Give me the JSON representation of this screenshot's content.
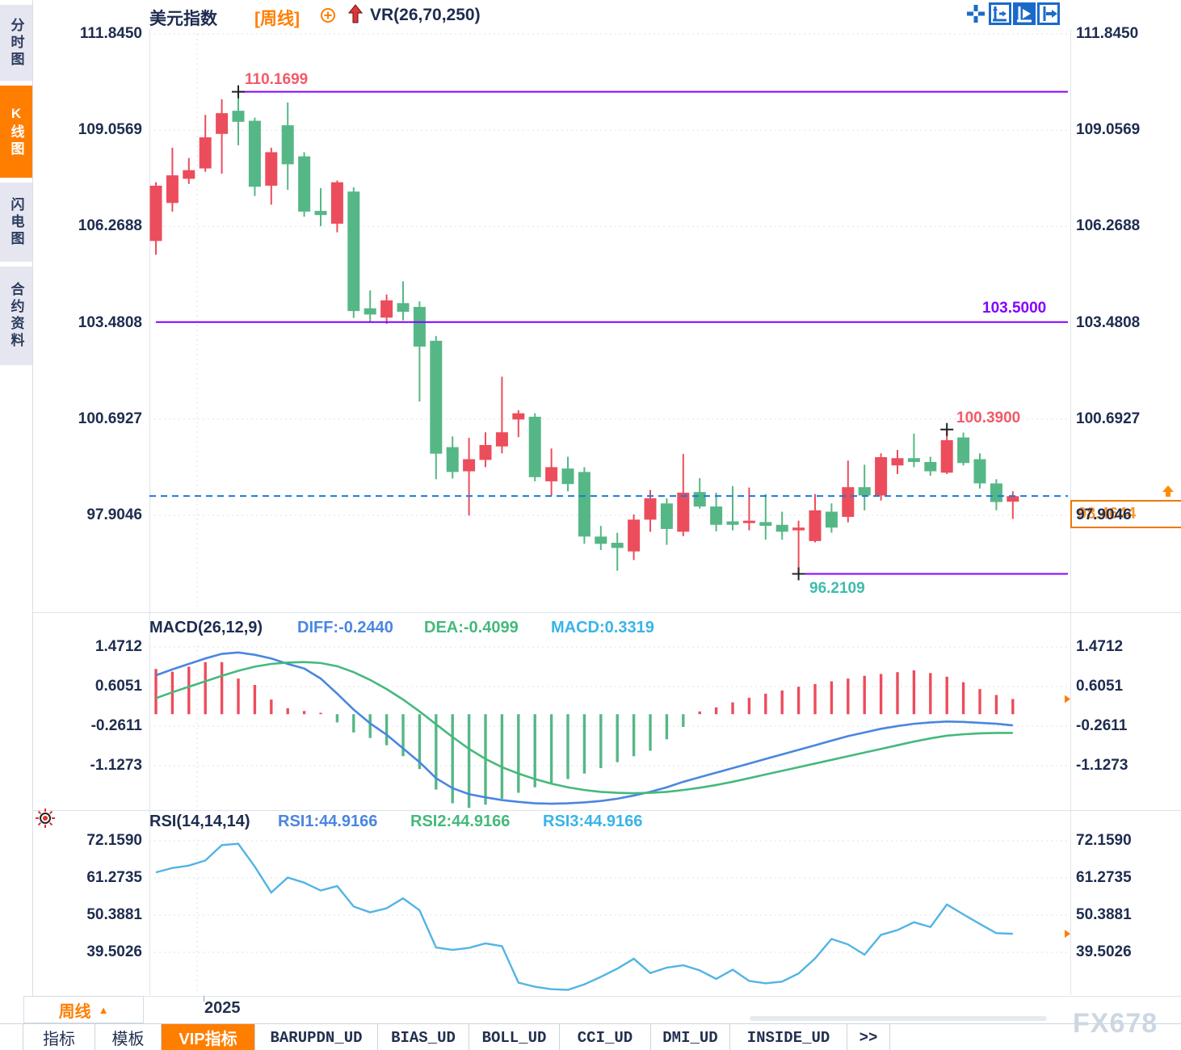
{
  "header": {
    "title": "美元指数",
    "period_tag": "[周线]",
    "indicator": "VR(26,70,250)"
  },
  "sidebar": {
    "items": [
      {
        "label": "分时图",
        "active": false
      },
      {
        "label": "K线图",
        "active": true
      },
      {
        "label": "闪电图",
        "active": false
      },
      {
        "label": "合约资料",
        "active": false
      }
    ]
  },
  "toolbar": {
    "icons": [
      "pan-tool",
      "axis-range",
      "axis-scale",
      "move-right"
    ]
  },
  "chart_data": [
    {
      "type": "candlestick",
      "title": "美元指数 周线",
      "ylim": [
        96.0,
        111.845
      ],
      "grid": true,
      "yticks": {
        "labels": [
          "111.8450",
          "109.0569",
          "106.2688",
          "103.4808",
          "100.6927",
          "97.9046"
        ],
        "values": [
          111.845,
          109.0569,
          106.2688,
          103.4808,
          100.6927,
          97.9046
        ]
      },
      "candles_ohlc": [
        [
          105.85,
          107.55,
          105.45,
          107.45
        ],
        [
          106.95,
          108.55,
          106.7,
          107.75
        ],
        [
          107.65,
          108.25,
          107.5,
          107.9
        ],
        [
          107.95,
          109.5,
          107.85,
          108.85
        ],
        [
          108.95,
          109.95,
          107.8,
          109.55
        ],
        [
          109.62,
          110.17,
          108.62,
          109.3
        ],
        [
          109.33,
          109.42,
          107.15,
          107.42
        ],
        [
          107.45,
          108.55,
          106.9,
          108.42
        ],
        [
          109.2,
          109.86,
          107.33,
          108.07
        ],
        [
          108.3,
          108.42,
          106.55,
          106.7
        ],
        [
          106.72,
          107.38,
          106.28,
          106.6
        ],
        [
          106.35,
          107.6,
          106.1,
          107.55
        ],
        [
          107.28,
          107.4,
          103.62,
          103.82
        ],
        [
          103.9,
          104.42,
          103.5,
          103.72
        ],
        [
          103.63,
          104.3,
          103.45,
          104.13
        ],
        [
          104.05,
          104.68,
          103.55,
          103.8
        ],
        [
          103.94,
          104.1,
          101.2,
          102.79
        ],
        [
          102.96,
          103.1,
          98.95,
          99.69
        ],
        [
          99.88,
          100.19,
          98.97,
          99.16
        ],
        [
          99.18,
          100.15,
          97.9,
          99.53
        ],
        [
          99.51,
          100.31,
          99.3,
          99.94
        ],
        [
          99.9,
          101.92,
          99.7,
          100.31
        ],
        [
          100.68,
          100.95,
          100.17,
          100.86
        ],
        [
          100.76,
          100.86,
          98.89,
          99.01
        ],
        [
          98.89,
          99.84,
          98.48,
          99.3
        ],
        [
          99.26,
          99.6,
          98.6,
          98.81
        ],
        [
          99.16,
          99.3,
          97.08,
          97.29
        ],
        [
          97.29,
          97.6,
          96.9,
          97.08
        ],
        [
          97.11,
          97.4,
          96.3,
          96.96
        ],
        [
          96.86,
          97.93,
          96.61,
          97.78
        ],
        [
          97.78,
          98.64,
          97.43,
          98.4
        ],
        [
          98.25,
          98.4,
          97.05,
          97.51
        ],
        [
          97.43,
          99.68,
          97.3,
          98.56
        ],
        [
          98.58,
          98.98,
          98.1,
          98.16
        ],
        [
          98.16,
          98.56,
          97.44,
          97.63
        ],
        [
          97.73,
          98.75,
          97.47,
          97.63
        ],
        [
          97.68,
          98.71,
          97.47,
          97.75
        ],
        [
          97.71,
          98.52,
          97.2,
          97.6
        ],
        [
          97.63,
          98.01,
          97.2,
          97.43
        ],
        [
          97.47,
          97.75,
          96.21,
          97.55
        ],
        [
          97.16,
          98.52,
          97.12,
          98.05
        ],
        [
          98.01,
          98.25,
          97.4,
          97.55
        ],
        [
          97.86,
          99.49,
          97.7,
          98.72
        ],
        [
          98.72,
          99.37,
          98.05,
          98.48
        ],
        [
          98.48,
          99.7,
          98.33,
          99.59
        ],
        [
          99.35,
          99.8,
          99.1,
          99.56
        ],
        [
          99.56,
          100.27,
          99.3,
          99.45
        ],
        [
          99.45,
          99.6,
          99.05,
          99.18
        ],
        [
          99.14,
          100.39,
          99.1,
          100.08
        ],
        [
          100.16,
          100.3,
          99.35,
          99.42
        ],
        [
          99.53,
          99.7,
          98.68,
          98.83
        ],
        [
          98.83,
          98.95,
          98.05,
          98.29
        ],
        [
          98.3,
          98.6,
          97.8,
          98.46
        ]
      ],
      "hlines": [
        {
          "value": 110.1699,
          "label": "110.1699",
          "start_index": 5,
          "label_side": "left-above",
          "color_key": "red_label"
        },
        {
          "value": 103.5,
          "label": "103.5000",
          "start_index": 0,
          "label_side": "right-above",
          "color_key": "purple"
        },
        {
          "value": 96.2109,
          "label": "96.2109",
          "start_index": 39,
          "label_side": "left-below",
          "color_key": "teal_label"
        }
      ],
      "markers": [
        {
          "index": 5,
          "value": 110.1699,
          "glyph": "+"
        },
        {
          "index": 39,
          "value": 96.2109,
          "glyph": "+"
        },
        {
          "index": 48,
          "value": 100.39,
          "glyph": "+"
        }
      ],
      "high_label": {
        "text": "100.3900",
        "value": 100.39
      },
      "current_price": {
        "value": 98.4644,
        "label": "98.4644"
      }
    },
    {
      "type": "bar",
      "title": "MACD",
      "params_label": "MACD(26,12,9)",
      "series_labels": {
        "diff": "DIFF:-0.2440",
        "dea": "DEA:-0.4099",
        "macd": "MACD:0.3319"
      },
      "yticks": {
        "labels": [
          "1.4712",
          "0.6051",
          "-0.2611",
          "-1.1273"
        ],
        "values": [
          1.4712,
          0.6051,
          -0.2611,
          -1.1273
        ]
      },
      "hist": [
        0.99,
        0.93,
        1.04,
        1.14,
        1.14,
        0.78,
        0.64,
        0.32,
        0.13,
        0.07,
        0.03,
        -0.18,
        -0.4,
        -0.52,
        -0.68,
        -0.92,
        -1.2,
        -1.65,
        -1.95,
        -2.05,
        -1.98,
        -1.85,
        -1.72,
        -1.6,
        -1.5,
        -1.42,
        -1.3,
        -1.18,
        -1.05,
        -0.92,
        -0.8,
        -0.55,
        -0.28,
        0.06,
        0.15,
        0.26,
        0.36,
        0.45,
        0.52,
        0.6,
        0.66,
        0.72,
        0.78,
        0.84,
        0.88,
        0.92,
        0.96,
        0.9,
        0.82,
        0.7,
        0.55,
        0.42,
        0.332
      ],
      "diff": [
        0.85,
        0.98,
        1.1,
        1.22,
        1.32,
        1.35,
        1.3,
        1.22,
        1.1,
        1.0,
        0.78,
        0.45,
        0.1,
        -0.2,
        -0.45,
        -0.75,
        -1.05,
        -1.4,
        -1.62,
        -1.75,
        -1.82,
        -1.88,
        -1.92,
        -1.95,
        -1.96,
        -1.95,
        -1.93,
        -1.9,
        -1.85,
        -1.78,
        -1.7,
        -1.6,
        -1.48,
        -1.38,
        -1.28,
        -1.18,
        -1.08,
        -0.98,
        -0.88,
        -0.78,
        -0.68,
        -0.58,
        -0.48,
        -0.4,
        -0.32,
        -0.26,
        -0.21,
        -0.18,
        -0.16,
        -0.17,
        -0.19,
        -0.21,
        -0.244
      ],
      "dea": [
        0.35,
        0.48,
        0.6,
        0.72,
        0.84,
        0.95,
        1.04,
        1.1,
        1.13,
        1.14,
        1.12,
        1.05,
        0.92,
        0.75,
        0.55,
        0.32,
        0.06,
        -0.22,
        -0.5,
        -0.76,
        -0.98,
        -1.16,
        -1.3,
        -1.42,
        -1.52,
        -1.6,
        -1.66,
        -1.7,
        -1.72,
        -1.73,
        -1.72,
        -1.7,
        -1.66,
        -1.61,
        -1.55,
        -1.48,
        -1.4,
        -1.32,
        -1.24,
        -1.16,
        -1.08,
        -1.0,
        -0.92,
        -0.84,
        -0.76,
        -0.68,
        -0.6,
        -0.53,
        -0.47,
        -0.44,
        -0.42,
        -0.411,
        -0.41
      ]
    },
    {
      "type": "line",
      "title": "RSI",
      "params_label": "RSI(14,14,14)",
      "series_labels": {
        "rsi1": "RSI1:44.9166",
        "rsi2": "RSI2:44.9166",
        "rsi3": "RSI3:44.9166"
      },
      "yticks": {
        "labels": [
          "72.1590",
          "61.2735",
          "50.3881",
          "39.5026"
        ],
        "values": [
          72.159,
          61.2735,
          50.3881,
          39.5026
        ]
      },
      "values": [
        62.9,
        64.2,
        64.9,
        66.4,
        70.9,
        71.3,
        64.6,
        57.0,
        61.4,
        59.9,
        57.6,
        58.9,
        52.9,
        51.2,
        52.4,
        55.3,
        51.8,
        40.9,
        40.2,
        40.8,
        42.1,
        41.3,
        30.6,
        29.4,
        28.7,
        28.5,
        30.1,
        32.3,
        34.7,
        37.6,
        33.4,
        35.0,
        35.7,
        34.2,
        31.7,
        34.4,
        31.1,
        30.4,
        30.9,
        33.3,
        37.7,
        43.4,
        41.8,
        38.8,
        44.6,
        46.0,
        48.3,
        46.9,
        53.5,
        50.6,
        47.8,
        45.1,
        44.9166
      ]
    }
  ],
  "xaxis": {
    "year_label": "2025",
    "year_boundary_index": 3
  },
  "period_tab": {
    "label": "周线",
    "arrow": "▲"
  },
  "bottom_tabs": [
    {
      "label": "指标",
      "active": false
    },
    {
      "label": "模板",
      "active": false
    },
    {
      "label": "VIP指标",
      "active": true
    },
    {
      "label": "BARUPDN_UD",
      "active": false
    },
    {
      "label": "BIAS_UD",
      "active": false
    },
    {
      "label": "BOLL_UD",
      "active": false
    },
    {
      "label": "CCI_UD",
      "active": false
    },
    {
      "label": "DMI_UD",
      "active": false
    },
    {
      "label": "INSIDE_UD",
      "active": false
    },
    {
      "label": ">>",
      "active": false
    }
  ],
  "watermark": "FX678",
  "colors": {
    "up": "#ec4d5c",
    "down": "#56b786",
    "purple": "#8500ff",
    "current_blue": "#1879e0",
    "diff_blue": "#4a86e0",
    "dea_green": "#45b97c",
    "macd_cyan": "#38b4e8",
    "rsi_line": "#52b4e4",
    "accent": "#ff7e00",
    "axis_text": "#1e2c50",
    "red_label": "#f25a68",
    "teal_label": "#3fbcac",
    "grid": "#e2e2e2",
    "marker": "#222222"
  }
}
